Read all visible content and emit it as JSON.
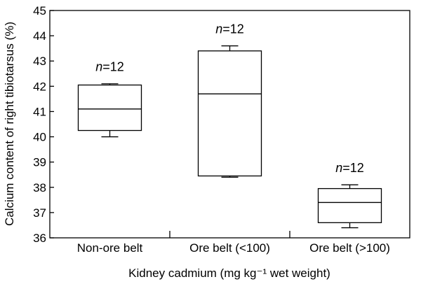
{
  "chart_data": {
    "type": "box",
    "title": "",
    "xlabel": "Kidney cadmium (mg kg⁻¹ wet weight)",
    "ylabel": "Calcium content of right tibiotarsus (%)",
    "ylim": [
      36,
      45
    ],
    "yticks": [
      36,
      37,
      38,
      39,
      40,
      41,
      42,
      43,
      44,
      45
    ],
    "grid": false,
    "categories": [
      "Non-ore belt",
      "Ore belt (<100)",
      "Ore belt (>100)"
    ],
    "boxes": [
      {
        "category": "Non-ore belt",
        "min": 40.0,
        "q1": 40.25,
        "median": 41.1,
        "q3": 42.05,
        "max": 42.1,
        "n_label": "=12"
      },
      {
        "category": "Ore belt (<100)",
        "min": 38.4,
        "q1": 38.45,
        "median": 41.7,
        "q3": 43.4,
        "max": 43.6,
        "n_label": "=12"
      },
      {
        "category": "Ore belt (>100)",
        "min": 36.4,
        "q1": 36.6,
        "median": 37.4,
        "q3": 37.95,
        "max": 38.1,
        "n_label": "=12"
      }
    ],
    "n_symbol": "n"
  }
}
